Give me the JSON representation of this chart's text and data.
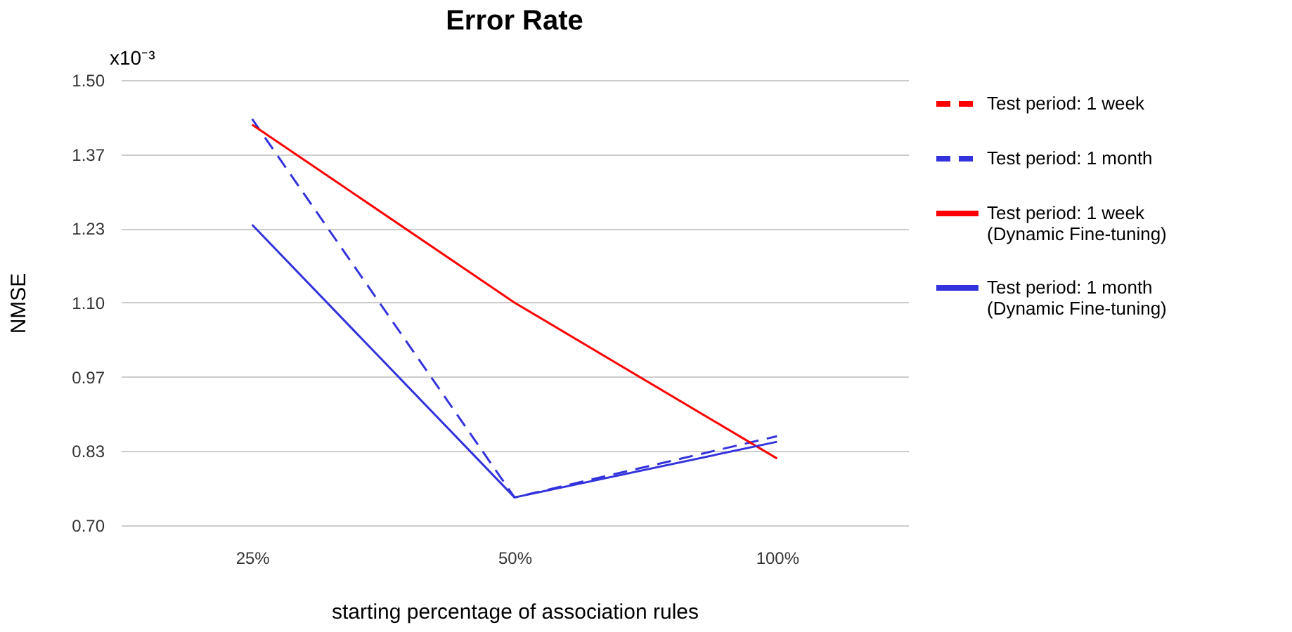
{
  "chart_data": {
    "type": "line",
    "title": "Error Rate",
    "xlabel": "starting percentage of association rules",
    "ylabel": "NMSE",
    "annotations": [
      "x10⁻³"
    ],
    "categories": [
      "25%",
      "50%",
      "100%"
    ],
    "series": [
      {
        "name": "Test period: 1 week",
        "color": "#ff0000",
        "line_style": "dashed",
        "values": [
          null,
          null,
          null
        ]
      },
      {
        "name": "Test period: 1 month",
        "color": "#3333dd",
        "line_style": "dashed",
        "values": [
          1.43,
          0.75,
          0.86
        ]
      },
      {
        "name": "Test period: 1 week (Dynamic Fine-tuning)",
        "color": "#ff0000",
        "line_style": "solid",
        "values": [
          1.42,
          1.1,
          0.82
        ]
      },
      {
        "name": "Test period: 1 month (Dynamic Fine-tuning)",
        "color": "#3333dd",
        "line_style": "solid",
        "values": [
          1.24,
          0.75,
          0.85
        ]
      }
    ],
    "ylim": [
      0.7,
      1.5
    ],
    "yticks": [
      {
        "value": 0.7,
        "label": "0.70"
      },
      {
        "value": 0.8333,
        "label": "0.83"
      },
      {
        "value": 0.9667,
        "label": "0.97"
      },
      {
        "value": 1.1,
        "label": "1.10"
      },
      {
        "value": 1.2333,
        "label": "1.23"
      },
      {
        "value": 1.3667,
        "label": "1.37"
      },
      {
        "value": 1.5,
        "label": "1.50"
      }
    ],
    "grid": "y",
    "legend": "top right",
    "marker": "none"
  }
}
